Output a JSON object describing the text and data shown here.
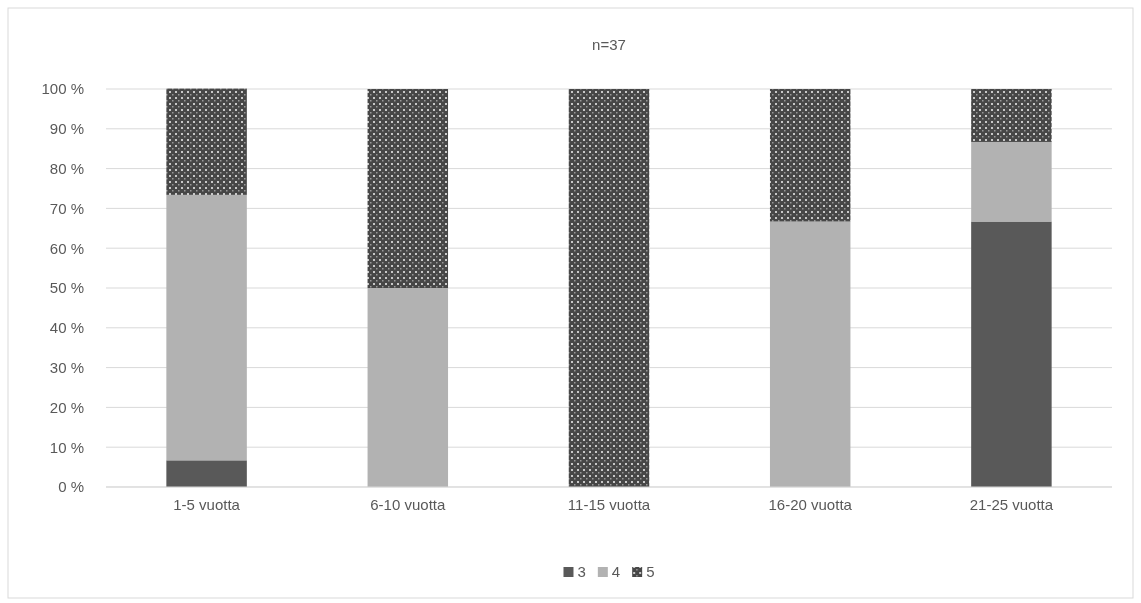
{
  "chart_data": {
    "type": "bar",
    "title": "n=37",
    "stacked": true,
    "categories": [
      "1-5 vuotta",
      "6-10 vuotta",
      "11-15 vuotta",
      "16-20 vuotta",
      "21-25 vuotta"
    ],
    "series": [
      {
        "name": "3",
        "color": "#595959",
        "values": [
          6.7,
          0,
          0,
          0,
          66.7
        ]
      },
      {
        "name": "4",
        "color": "#b2b2b2",
        "values": [
          66.7,
          50,
          0,
          66.7,
          20
        ]
      },
      {
        "name": "5",
        "color": "#474747",
        "values": [
          26.7,
          50,
          100,
          33.3,
          13.3
        ]
      }
    ],
    "ylim": [
      0,
      100
    ],
    "yticks": [
      {
        "value": 0,
        "label": "0 %"
      },
      {
        "value": 10,
        "label": "10 %"
      },
      {
        "value": 20,
        "label": "20 %"
      },
      {
        "value": 30,
        "label": "30 %"
      },
      {
        "value": 40,
        "label": "40 %"
      },
      {
        "value": 50,
        "label": "50 %"
      },
      {
        "value": 60,
        "label": "60 %"
      },
      {
        "value": 70,
        "label": "70 %"
      },
      {
        "value": 80,
        "label": "80 %"
      },
      {
        "value": 90,
        "label": "90 %"
      },
      {
        "value": 100,
        "label": "100 %"
      }
    ],
    "grid": "y",
    "legend": "bottom"
  }
}
